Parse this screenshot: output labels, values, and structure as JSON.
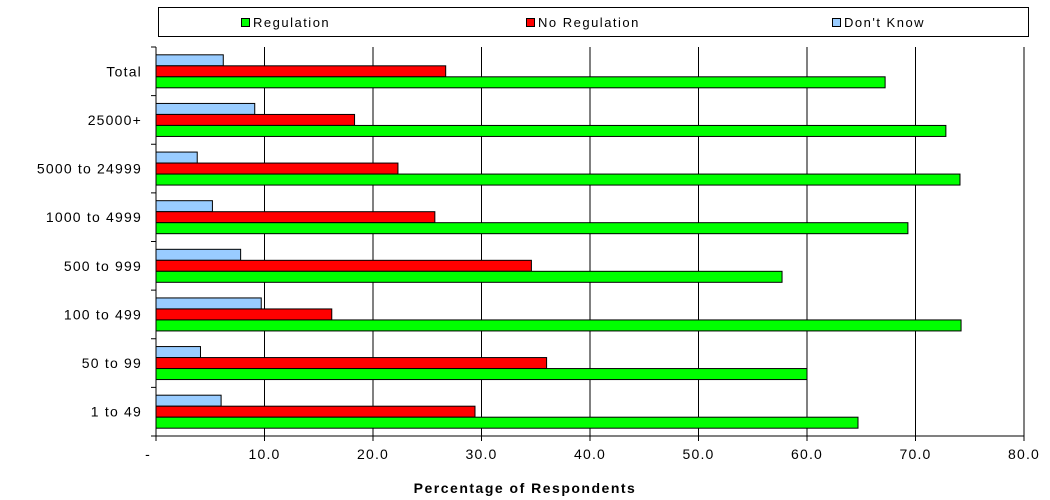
{
  "chart_data": {
    "type": "bar",
    "orientation": "horizontal",
    "categories": [
      "Total",
      "25000+",
      "5000 to 24999",
      "1000 to 4999",
      "500 to 999",
      "100 to 499",
      "50 to 99",
      "1 to 49"
    ],
    "series": [
      {
        "name": "Regulation",
        "color": "#00ff00",
        "values": [
          67.2,
          72.8,
          74.1,
          69.3,
          57.7,
          74.2,
          60.0,
          64.7
        ]
      },
      {
        "name": "No Regulation",
        "color": "#ff0000",
        "values": [
          26.7,
          18.3,
          22.3,
          25.7,
          34.6,
          16.2,
          36.0,
          29.4
        ]
      },
      {
        "name": "Don't Know",
        "color": "#99ccff",
        "values": [
          6.2,
          9.1,
          3.8,
          5.2,
          7.8,
          9.7,
          4.1,
          6.0
        ]
      }
    ],
    "xlabel": "Percentage of Respondents",
    "ylabel": "",
    "xlim": [
      0,
      80
    ],
    "xticks": [
      "-",
      "10.0",
      "20.0",
      "30.0",
      "40.0",
      "50.0",
      "60.0",
      "70.0",
      "80.0"
    ],
    "grid": "vertical",
    "legend": "top"
  }
}
